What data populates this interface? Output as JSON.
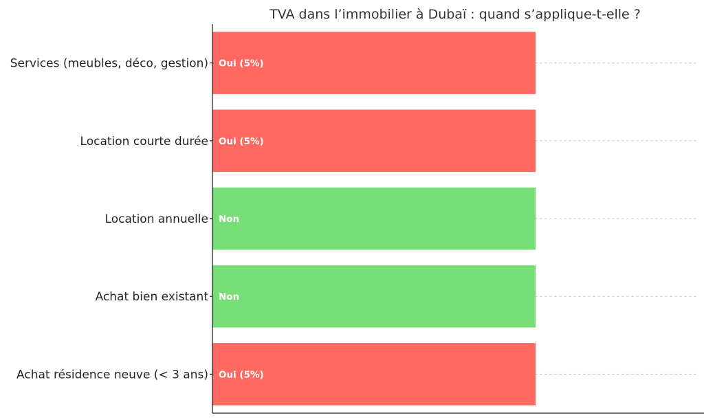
{
  "chart_data": {
    "type": "bar",
    "orientation": "horizontal",
    "title": "TVA dans l’immobilier à Dubaï : quand s’applique-t-elle ?",
    "xlabel": "",
    "ylabel": "",
    "categories": [
      "Services (meubles, déco, gestion)",
      "Location courte durée",
      "Location annuelle",
      "Achat bien existant",
      "Achat résidence neuve (< 3 ans)"
    ],
    "values": [
      1,
      1,
      1,
      1,
      1
    ],
    "labels": [
      "Oui (5%)",
      "Oui (5%)",
      "Non",
      "Non",
      "Oui (5%)"
    ],
    "colors": [
      "#ff6961",
      "#ff6961",
      "#77dd77",
      "#77dd77",
      "#ff6961"
    ],
    "xlim": [
      0,
      1.5
    ],
    "grid": "x-dashed",
    "legend": "none"
  }
}
